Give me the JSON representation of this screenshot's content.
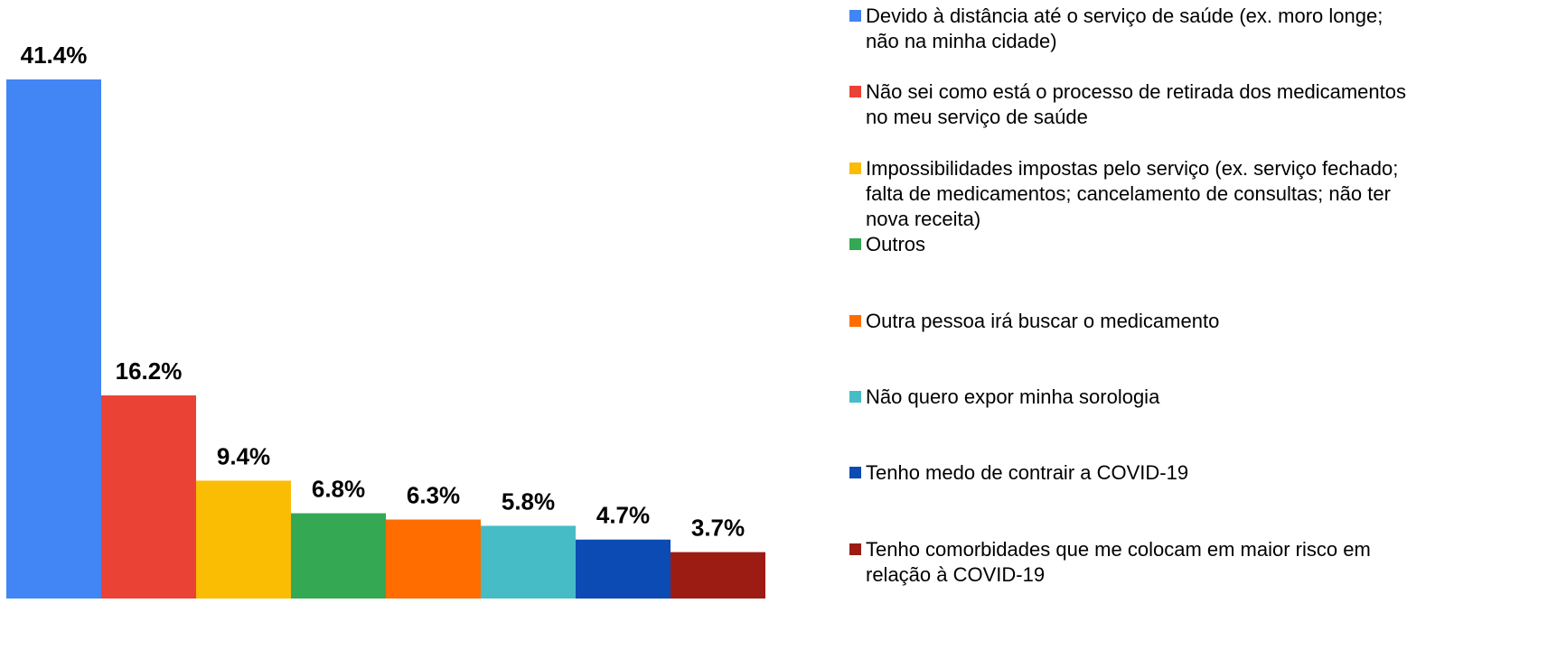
{
  "chart_data": {
    "type": "bar",
    "categories": [
      null
    ],
    "series": [
      {
        "name": "Devido à distância até o serviço de saúde (ex. moro longe; não na minha cidade)",
        "color": "#4285f4",
        "values": [
          41.4
        ],
        "value_labels": [
          "41.4%"
        ]
      },
      {
        "name": "Não sei como está o processo de retirada dos medicamentos no meu serviço de saúde",
        "color": "#ea4335",
        "values": [
          16.2
        ],
        "value_labels": [
          "16.2%"
        ]
      },
      {
        "name": "Impossibilidades impostas pelo serviço (ex. serviço fechado; falta de medicamentos; cancelamento de consultas; não ter nova receita)",
        "color": "#fbbc04",
        "values": [
          9.4
        ],
        "value_labels": [
          "9.4%"
        ]
      },
      {
        "name": "Outros",
        "color": "#34a853",
        "values": [
          6.8
        ],
        "value_labels": [
          "6.8%"
        ]
      },
      {
        "name": "Outra pessoa irá buscar o medicamento",
        "color": "#ff6d01",
        "values": [
          6.3
        ],
        "value_labels": [
          "6.3%"
        ]
      },
      {
        "name": "Não quero expor minha sorologia",
        "color": "#46bdc6",
        "values": [
          5.8
        ],
        "value_labels": [
          "5.8%"
        ]
      },
      {
        "name": "Tenho medo de contrair a COVID-19",
        "color": "#0b4bb3",
        "values": [
          4.7
        ],
        "value_labels": [
          "4.7%"
        ]
      },
      {
        "name": "Tenho comorbidades que me colocam em maior risco em relação à COVID-19",
        "color": "#9c1c14",
        "values": [
          3.7
        ],
        "value_labels": [
          "3.7%"
        ]
      }
    ],
    "legend": "right"
  }
}
